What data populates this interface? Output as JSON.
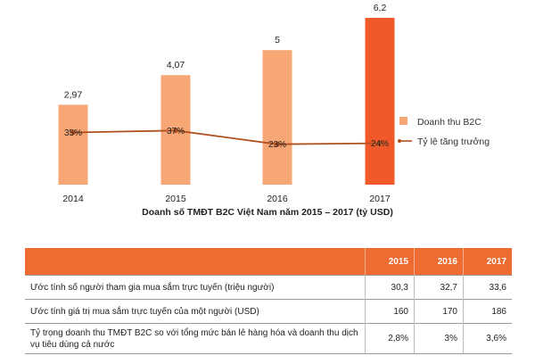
{
  "chart_data": {
    "type": "bar",
    "title": "Doanh số TMĐT B2C Việt Nam năm 2015 – 2017 (tỷ USD)",
    "categories": [
      "2014",
      "2015",
      "2016",
      "2017"
    ],
    "ylim": [
      0,
      6.2
    ],
    "series": [
      {
        "name": "Doanh thu B2C",
        "values": [
          2.97,
          4.07,
          5,
          6.2
        ],
        "labels": [
          "2,97",
          "4,07",
          "5",
          "6,2"
        ],
        "colors": [
          "#f7a775",
          "#f7a775",
          "#f7a775",
          "#f0592a"
        ]
      },
      {
        "name": "Tỷ lệ tăng trưởng",
        "type": "line",
        "values": [
          35,
          37,
          23,
          24
        ],
        "labels": [
          "35%",
          "37%",
          "23%",
          "24%"
        ],
        "color": "#b0501f"
      }
    ],
    "legend_placement": "right"
  },
  "table": {
    "columns": [
      "",
      "2015",
      "2016",
      "2017"
    ],
    "rows": [
      {
        "label": "Ước tính số người tham gia mua sắm trực tuyến (triệu người)",
        "values": [
          "30,3",
          "32,7",
          "33,6"
        ]
      },
      {
        "label": "Ước tính giá trị mua sắm trực tuyến của một người (USD)",
        "values": [
          "160",
          "170",
          "186"
        ]
      },
      {
        "label": "Tỷ trọng doanh thu TMĐT B2C so với tổng mức bán lẻ hàng hóa và doanh thu dịch vụ tiêu dùng cả nước",
        "values": [
          "2,8%",
          "3%",
          "3,6%"
        ]
      }
    ]
  }
}
